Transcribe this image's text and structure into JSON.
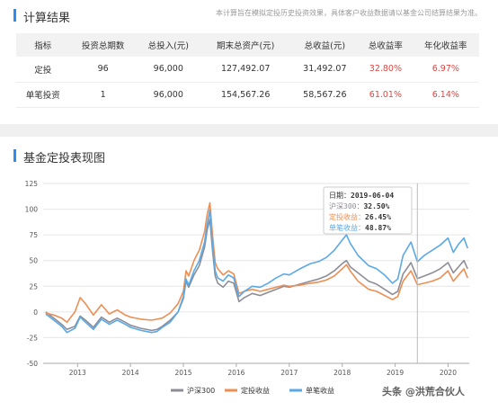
{
  "results_section": {
    "title": "计算结果",
    "disclaimer": "本计算旨在模拟定投历史投资效果，具体客户收益数据请以基金公司结算结果为准。",
    "table": {
      "headers": [
        "指标",
        "投资总期数",
        "总投入(元)",
        "期末总资产(元)",
        "总收益(元)",
        "总收益率",
        "年化收益率"
      ],
      "rows": [
        [
          "定投",
          "96",
          "96,000",
          "127,492.07",
          "31,492.07",
          "32.80%",
          "6.97%"
        ],
        [
          "单笔投资",
          "1",
          "96,000",
          "154,567.26",
          "58,567.26",
          "61.01%",
          "6.14%"
        ]
      ]
    }
  },
  "chart_section": {
    "title": "基金定投表现图"
  },
  "tooltip": {
    "date_label": "日期：",
    "date": "2019-06-04",
    "rows": [
      {
        "label": "沪深300：",
        "value": "32.50%",
        "color": "#8d8d97"
      },
      {
        "label": "定投收益：",
        "value": "26.45%",
        "color": "#ee8e53"
      },
      {
        "label": "单笔收益：",
        "value": "48.87%",
        "color": "#5aa9e6"
      }
    ]
  },
  "watermark": "头条 @洪荒合伙人",
  "chart_data": {
    "type": "line",
    "title": "",
    "xlabel": "",
    "ylabel": "",
    "ylim": [
      -50,
      125
    ],
    "y_ticks": [
      -50,
      -25,
      0,
      25,
      50,
      75,
      100,
      125
    ],
    "x_ticks": [
      "2013",
      "2014",
      "2015",
      "2016",
      "2017",
      "2018",
      "2019",
      "2020"
    ],
    "x_range": [
      2012.35,
      2020.4
    ],
    "grid": true,
    "legend_position": "bottom",
    "series": [
      {
        "name": "沪深300",
        "color": "#8d8d97",
        "points": [
          [
            2012.4,
            0
          ],
          [
            2012.55,
            -6
          ],
          [
            2012.7,
            -12
          ],
          [
            2012.8,
            -17
          ],
          [
            2012.95,
            -14
          ],
          [
            2013.05,
            -4
          ],
          [
            2013.15,
            -8
          ],
          [
            2013.3,
            -15
          ],
          [
            2013.45,
            -5
          ],
          [
            2013.6,
            -10
          ],
          [
            2013.75,
            -6
          ],
          [
            2013.9,
            -10
          ],
          [
            2014.0,
            -13
          ],
          [
            2014.2,
            -16
          ],
          [
            2014.4,
            -18
          ],
          [
            2014.5,
            -17
          ],
          [
            2014.6,
            -14
          ],
          [
            2014.75,
            -8
          ],
          [
            2014.9,
            0
          ],
          [
            2015.0,
            13
          ],
          [
            2015.05,
            30
          ],
          [
            2015.1,
            24
          ],
          [
            2015.2,
            36
          ],
          [
            2015.3,
            45
          ],
          [
            2015.4,
            63
          ],
          [
            2015.45,
            80
          ],
          [
            2015.5,
            90
          ],
          [
            2015.55,
            60
          ],
          [
            2015.6,
            35
          ],
          [
            2015.65,
            28
          ],
          [
            2015.75,
            24
          ],
          [
            2015.85,
            30
          ],
          [
            2015.95,
            28
          ],
          [
            2016.05,
            10
          ],
          [
            2016.15,
            14
          ],
          [
            2016.3,
            18
          ],
          [
            2016.45,
            16
          ],
          [
            2016.6,
            19
          ],
          [
            2016.75,
            22
          ],
          [
            2016.9,
            25
          ],
          [
            2017.0,
            24
          ],
          [
            2017.2,
            27
          ],
          [
            2017.4,
            30
          ],
          [
            2017.55,
            32
          ],
          [
            2017.7,
            35
          ],
          [
            2017.85,
            40
          ],
          [
            2018.0,
            47
          ],
          [
            2018.08,
            50
          ],
          [
            2018.15,
            44
          ],
          [
            2018.3,
            38
          ],
          [
            2018.5,
            30
          ],
          [
            2018.65,
            27
          ],
          [
            2018.8,
            22
          ],
          [
            2018.95,
            17
          ],
          [
            2019.05,
            20
          ],
          [
            2019.15,
            37
          ],
          [
            2019.3,
            48
          ],
          [
            2019.42,
            32.5
          ],
          [
            2019.55,
            35
          ],
          [
            2019.7,
            38
          ],
          [
            2019.85,
            42
          ],
          [
            2020.0,
            48
          ],
          [
            2020.1,
            38
          ],
          [
            2020.2,
            44
          ],
          [
            2020.3,
            50
          ],
          [
            2020.37,
            42
          ]
        ]
      },
      {
        "name": "定投收益",
        "color": "#ee8e53",
        "points": [
          [
            2012.4,
            -1
          ],
          [
            2012.55,
            -3
          ],
          [
            2012.7,
            -6
          ],
          [
            2012.8,
            -10
          ],
          [
            2012.95,
            0
          ],
          [
            2013.05,
            14
          ],
          [
            2013.15,
            8
          ],
          [
            2013.3,
            -3
          ],
          [
            2013.45,
            7
          ],
          [
            2013.6,
            -2
          ],
          [
            2013.75,
            2
          ],
          [
            2013.9,
            -3
          ],
          [
            2014.0,
            -5
          ],
          [
            2014.2,
            -7
          ],
          [
            2014.4,
            -8
          ],
          [
            2014.5,
            -7
          ],
          [
            2014.6,
            -6
          ],
          [
            2014.75,
            -1
          ],
          [
            2014.9,
            8
          ],
          [
            2015.0,
            20
          ],
          [
            2015.05,
            40
          ],
          [
            2015.1,
            35
          ],
          [
            2015.2,
            50
          ],
          [
            2015.3,
            60
          ],
          [
            2015.4,
            78
          ],
          [
            2015.45,
            95
          ],
          [
            2015.5,
            106
          ],
          [
            2015.55,
            75
          ],
          [
            2015.6,
            48
          ],
          [
            2015.65,
            42
          ],
          [
            2015.75,
            36
          ],
          [
            2015.85,
            40
          ],
          [
            2015.95,
            37
          ],
          [
            2016.05,
            18
          ],
          [
            2016.15,
            20
          ],
          [
            2016.3,
            22
          ],
          [
            2016.45,
            20
          ],
          [
            2016.6,
            22
          ],
          [
            2016.75,
            24
          ],
          [
            2016.9,
            26
          ],
          [
            2017.0,
            25
          ],
          [
            2017.2,
            26
          ],
          [
            2017.4,
            28
          ],
          [
            2017.55,
            29
          ],
          [
            2017.7,
            31
          ],
          [
            2017.85,
            35
          ],
          [
            2018.0,
            42
          ],
          [
            2018.08,
            46
          ],
          [
            2018.15,
            40
          ],
          [
            2018.3,
            30
          ],
          [
            2018.5,
            22
          ],
          [
            2018.65,
            20
          ],
          [
            2018.8,
            16
          ],
          [
            2018.95,
            12
          ],
          [
            2019.05,
            15
          ],
          [
            2019.15,
            30
          ],
          [
            2019.3,
            40
          ],
          [
            2019.42,
            26.45
          ],
          [
            2019.55,
            28
          ],
          [
            2019.7,
            30
          ],
          [
            2019.85,
            33
          ],
          [
            2020.0,
            40
          ],
          [
            2020.1,
            30
          ],
          [
            2020.2,
            36
          ],
          [
            2020.3,
            42
          ],
          [
            2020.37,
            33
          ]
        ]
      },
      {
        "name": "单笔收益",
        "color": "#5aa9e6",
        "points": [
          [
            2012.4,
            -2
          ],
          [
            2012.55,
            -8
          ],
          [
            2012.7,
            -14
          ],
          [
            2012.8,
            -20
          ],
          [
            2012.95,
            -16
          ],
          [
            2013.05,
            -5
          ],
          [
            2013.15,
            -10
          ],
          [
            2013.3,
            -17
          ],
          [
            2013.45,
            -7
          ],
          [
            2013.6,
            -12
          ],
          [
            2013.75,
            -8
          ],
          [
            2013.9,
            -12
          ],
          [
            2014.0,
            -15
          ],
          [
            2014.2,
            -18
          ],
          [
            2014.4,
            -20
          ],
          [
            2014.5,
            -19
          ],
          [
            2014.6,
            -15
          ],
          [
            2014.75,
            -10
          ],
          [
            2014.9,
            0
          ],
          [
            2015.0,
            15
          ],
          [
            2015.05,
            32
          ],
          [
            2015.1,
            26
          ],
          [
            2015.2,
            40
          ],
          [
            2015.3,
            50
          ],
          [
            2015.4,
            68
          ],
          [
            2015.45,
            85
          ],
          [
            2015.5,
            99
          ],
          [
            2015.55,
            65
          ],
          [
            2015.6,
            40
          ],
          [
            2015.65,
            33
          ],
          [
            2015.75,
            30
          ],
          [
            2015.85,
            36
          ],
          [
            2015.95,
            33
          ],
          [
            2016.05,
            15
          ],
          [
            2016.15,
            20
          ],
          [
            2016.3,
            25
          ],
          [
            2016.45,
            24
          ],
          [
            2016.6,
            28
          ],
          [
            2016.75,
            33
          ],
          [
            2016.9,
            37
          ],
          [
            2017.0,
            36
          ],
          [
            2017.2,
            42
          ],
          [
            2017.4,
            47
          ],
          [
            2017.55,
            49
          ],
          [
            2017.7,
            53
          ],
          [
            2017.85,
            60
          ],
          [
            2018.0,
            70
          ],
          [
            2018.08,
            75
          ],
          [
            2018.15,
            67
          ],
          [
            2018.3,
            55
          ],
          [
            2018.5,
            45
          ],
          [
            2018.65,
            42
          ],
          [
            2018.8,
            36
          ],
          [
            2018.95,
            28
          ],
          [
            2019.05,
            32
          ],
          [
            2019.15,
            55
          ],
          [
            2019.3,
            68
          ],
          [
            2019.42,
            48.87
          ],
          [
            2019.55,
            55
          ],
          [
            2019.7,
            60
          ],
          [
            2019.85,
            65
          ],
          [
            2020.0,
            72
          ],
          [
            2020.1,
            58
          ],
          [
            2020.2,
            66
          ],
          [
            2020.3,
            72
          ],
          [
            2020.37,
            62
          ]
        ]
      }
    ]
  }
}
